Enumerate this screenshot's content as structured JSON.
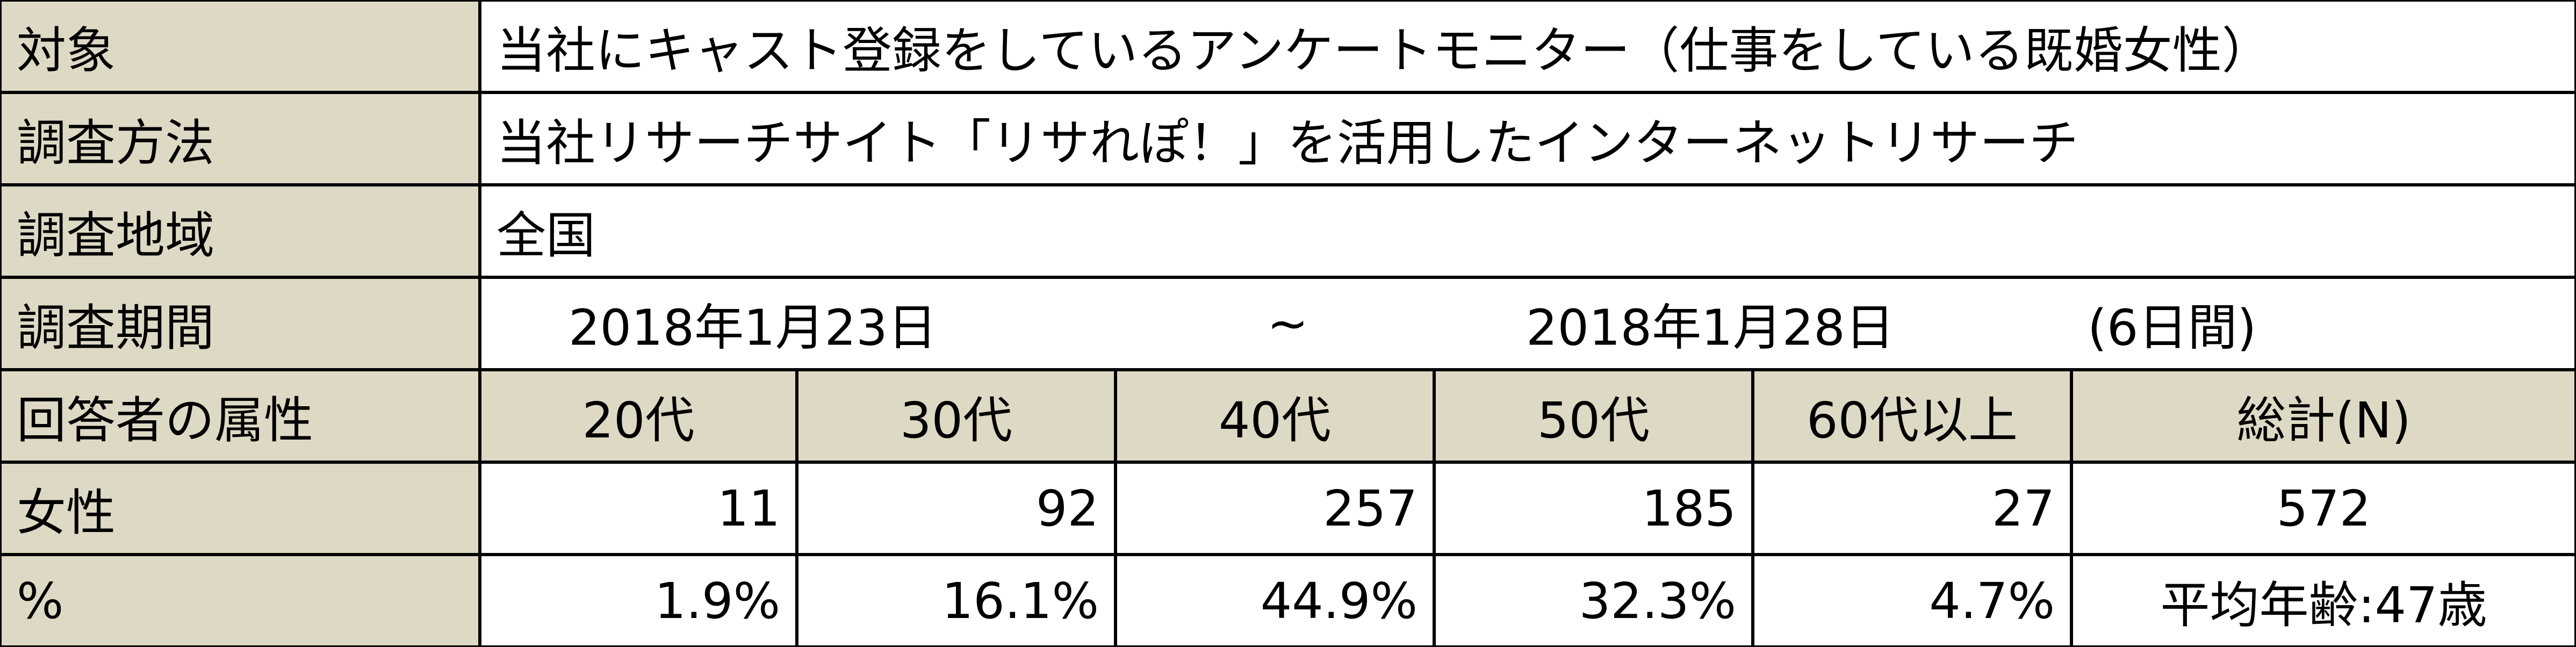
{
  "table": {
    "rows": [
      [
        "対象",
        "当社にキャスト登録をしているアンケートモニター（仕事をしている既婚女性）"
      ],
      [
        "調査方法",
        "当社リサーチサイト「リサれぽ！」を活用したインターネットリサーチ"
      ],
      [
        "調査地域",
        "全国"
      ],
      [
        "調査期間",
        "2018年1月23日",
        "~",
        "2018年1月28日",
        "(6日間)"
      ],
      [
        "回答者の属性",
        "20代",
        "30代",
        "40代",
        "50代",
        "60代以上",
        "総計(N)"
      ],
      [
        "女性",
        11,
        92,
        257,
        185,
        27,
        572
      ],
      [
        "%",
        "1.9%",
        "16.1%",
        "44.9%",
        "32.3%",
        "4.7%",
        "平均年齢:47歳"
      ]
    ]
  }
}
